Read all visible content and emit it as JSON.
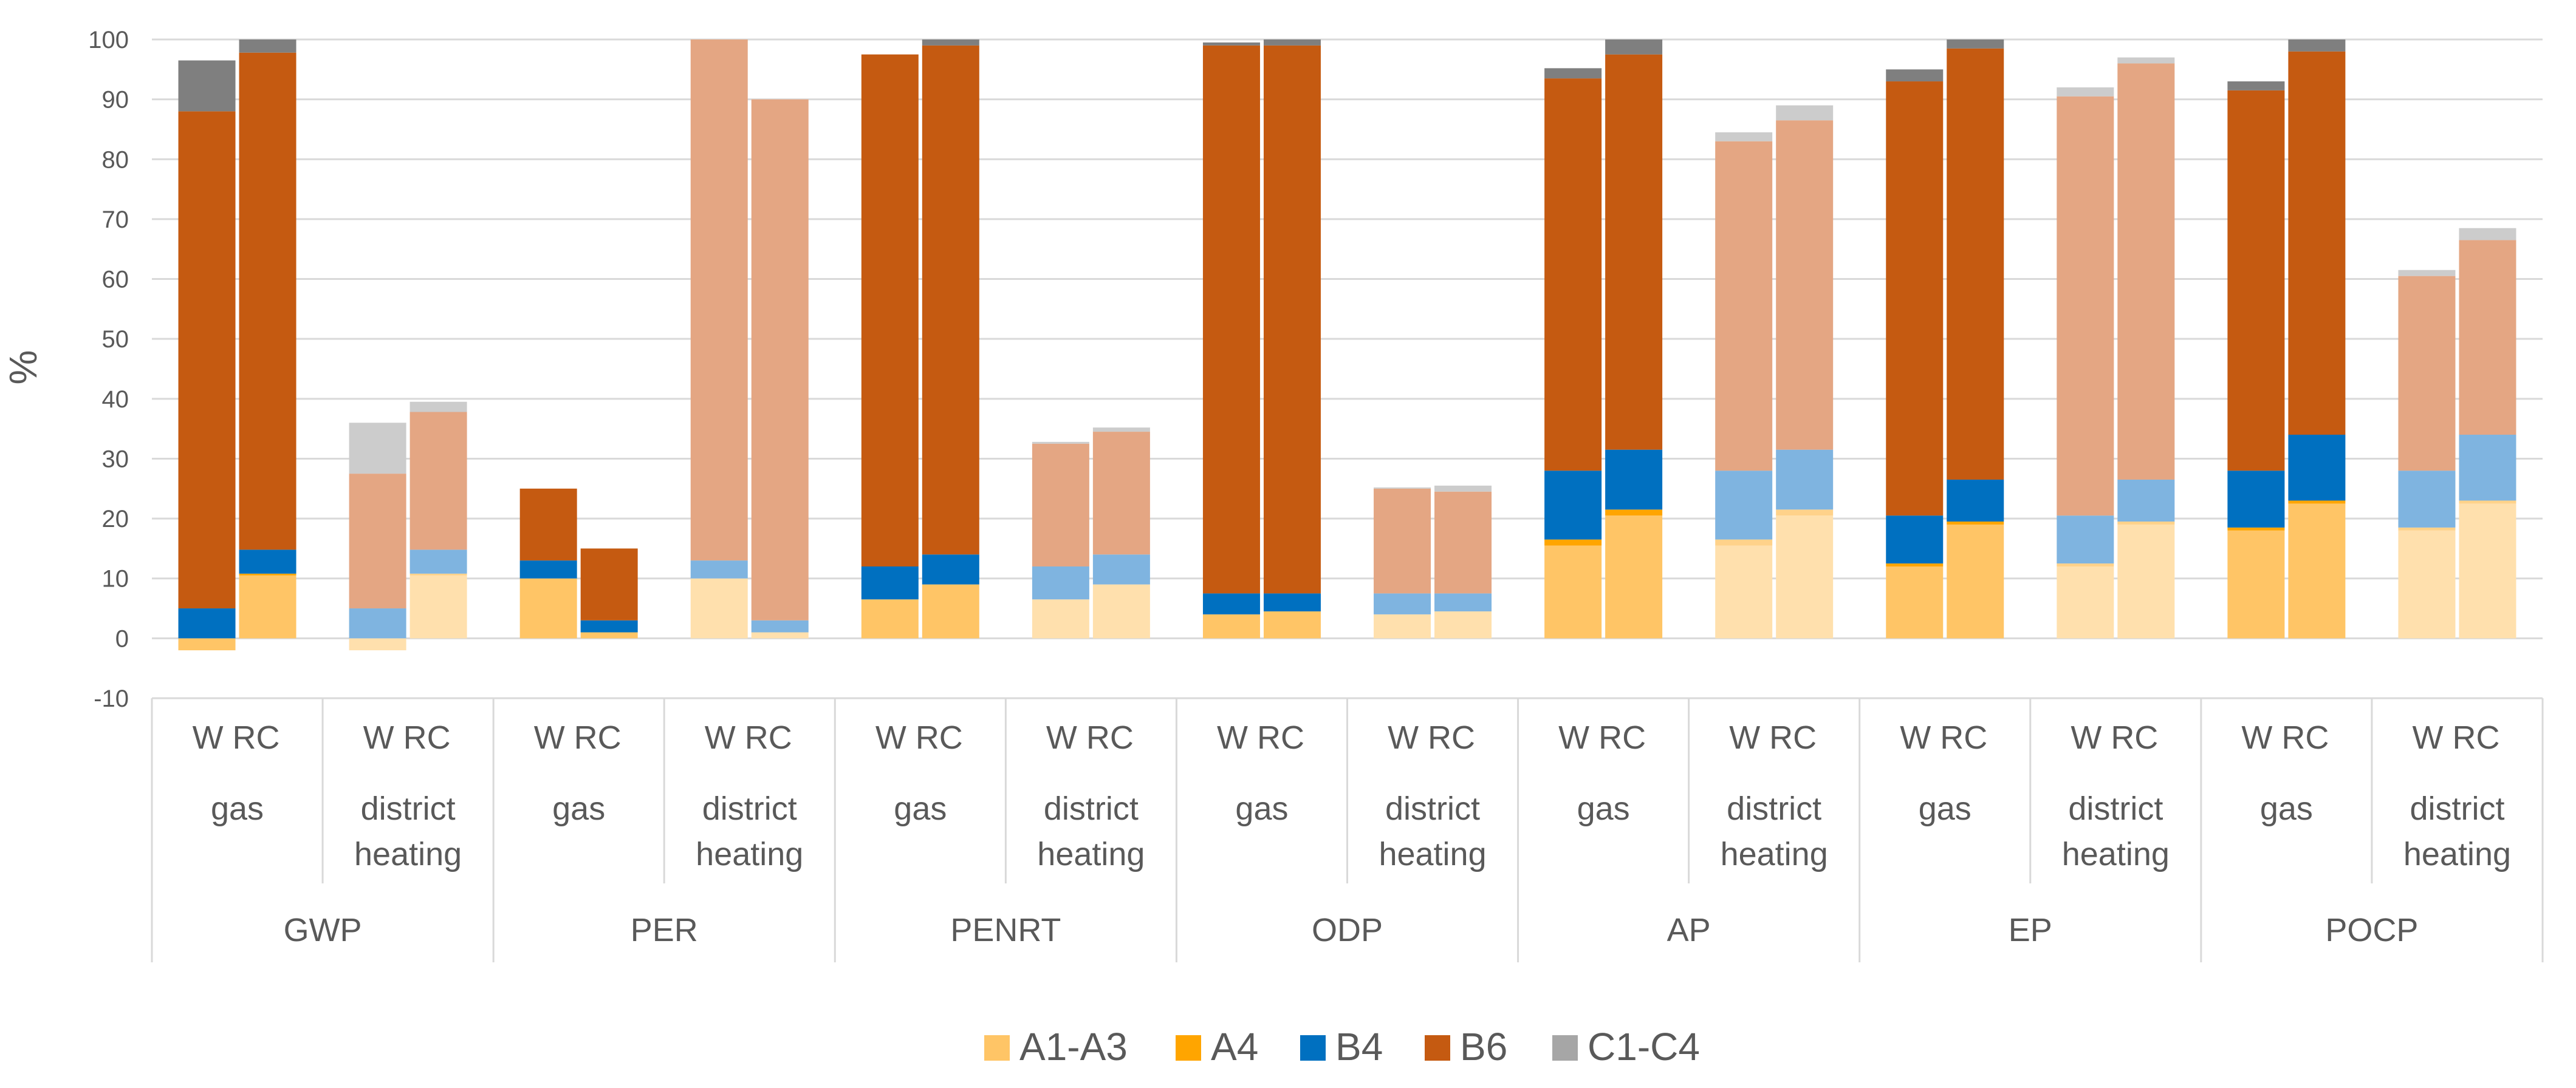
{
  "chart_data": {
    "type": "bar",
    "stacked": true,
    "ylabel": "%",
    "ylim": [
      -10,
      100
    ],
    "yticks": [
      -10,
      0,
      10,
      20,
      30,
      40,
      50,
      60,
      70,
      80,
      90,
      100
    ],
    "grid": true,
    "legend_position": "bottom",
    "legend": [
      {
        "name": "A1-A3",
        "color": "#FFC566"
      },
      {
        "name": "A4",
        "color": "#FFA500"
      },
      {
        "name": "B4",
        "color": "#0070C0"
      },
      {
        "name": "B6",
        "color": "#C55A11"
      },
      {
        "name": "C1-C4",
        "color": "#A6A6A6"
      }
    ],
    "bar_labels": [
      "W",
      "RC"
    ],
    "groups": [
      {
        "indicator": "GWP",
        "cases": [
          {
            "scenario": "gas",
            "bars": [
              {
                "label": "W",
                "A1-A3": -2,
                "A4": 0,
                "B4": 5,
                "B6": 83,
                "C1-C4": 8.5
              },
              {
                "label": "RC",
                "A1-A3": 10.5,
                "A4": 0.3,
                "B4": 4,
                "B6": 83,
                "C1-C4": 2.2
              }
            ]
          },
          {
            "scenario": "district heating",
            "bars": [
              {
                "label": "W",
                "A1-A3": -2,
                "A4": 0,
                "B4": 5,
                "B6": 22.5,
                "C1-C4": 8.5
              },
              {
                "label": "RC",
                "A1-A3": 10.5,
                "A4": 0.3,
                "B4": 4,
                "B6": 23,
                "C1-C4": 1.7
              }
            ]
          }
        ]
      },
      {
        "indicator": "PER",
        "cases": [
          {
            "scenario": "gas",
            "bars": [
              {
                "label": "W",
                "A1-A3": 10,
                "A4": 0,
                "B4": 3,
                "B6": 12,
                "C1-C4": 0
              },
              {
                "label": "RC",
                "A1-A3": 1,
                "A4": 0,
                "B4": 2,
                "B6": 12,
                "C1-C4": 0
              }
            ]
          },
          {
            "scenario": "district heating",
            "bars": [
              {
                "label": "W",
                "A1-A3": 10,
                "A4": 0,
                "B4": 3,
                "B6": 87,
                "C1-C4": 0
              },
              {
                "label": "RC",
                "A1-A3": 1,
                "A4": 0,
                "B4": 2,
                "B6": 87,
                "C1-C4": 0
              }
            ]
          }
        ]
      },
      {
        "indicator": "PENRT",
        "cases": [
          {
            "scenario": "gas",
            "bars": [
              {
                "label": "W",
                "A1-A3": 6.5,
                "A4": 0,
                "B4": 5.5,
                "B6": 85.5,
                "C1-C4": 0
              },
              {
                "label": "RC",
                "A1-A3": 9,
                "A4": 0,
                "B4": 5,
                "B6": 85,
                "C1-C4": 1
              }
            ]
          },
          {
            "scenario": "district heating",
            "bars": [
              {
                "label": "W",
                "A1-A3": 6.5,
                "A4": 0,
                "B4": 5.5,
                "B6": 20.5,
                "C1-C4": 0.3
              },
              {
                "label": "RC",
                "A1-A3": 9,
                "A4": 0,
                "B4": 5,
                "B6": 20.5,
                "C1-C4": 0.7
              }
            ]
          }
        ]
      },
      {
        "indicator": "ODP",
        "cases": [
          {
            "scenario": "gas",
            "bars": [
              {
                "label": "W",
                "A1-A3": 4,
                "A4": 0,
                "B4": 3.5,
                "B6": 91.5,
                "C1-C4": 0.5
              },
              {
                "label": "RC",
                "A1-A3": 4.5,
                "A4": 0,
                "B4": 3,
                "B6": 91.5,
                "C1-C4": 1
              }
            ]
          },
          {
            "scenario": "district heating",
            "bars": [
              {
                "label": "W",
                "A1-A3": 4,
                "A4": 0,
                "B4": 3.5,
                "B6": 17.5,
                "C1-C4": 0.2
              },
              {
                "label": "RC",
                "A1-A3": 4.5,
                "A4": 0,
                "B4": 3,
                "B6": 17,
                "C1-C4": 1
              }
            ]
          }
        ]
      },
      {
        "indicator": "AP",
        "cases": [
          {
            "scenario": "gas",
            "bars": [
              {
                "label": "W",
                "A1-A3": 15.5,
                "A4": 1,
                "B4": 11.5,
                "B6": 65.5,
                "C1-C4": 1.7
              },
              {
                "label": "RC",
                "A1-A3": 20.5,
                "A4": 1,
                "B4": 10,
                "B6": 66,
                "C1-C4": 2.5
              }
            ]
          },
          {
            "scenario": "district heating",
            "bars": [
              {
                "label": "W",
                "A1-A3": 15.5,
                "A4": 1,
                "B4": 11.5,
                "B6": 55,
                "C1-C4": 1.5
              },
              {
                "label": "RC",
                "A1-A3": 20.5,
                "A4": 1,
                "B4": 10,
                "B6": 55,
                "C1-C4": 2.5
              }
            ]
          }
        ]
      },
      {
        "indicator": "EP",
        "cases": [
          {
            "scenario": "gas",
            "bars": [
              {
                "label": "W",
                "A1-A3": 12,
                "A4": 0.5,
                "B4": 8,
                "B6": 72.5,
                "C1-C4": 2
              },
              {
                "label": "RC",
                "A1-A3": 19,
                "A4": 0.5,
                "B4": 7,
                "B6": 72,
                "C1-C4": 1.5
              }
            ]
          },
          {
            "scenario": "district heating",
            "bars": [
              {
                "label": "W",
                "A1-A3": 12,
                "A4": 0.5,
                "B4": 8,
                "B6": 70,
                "C1-C4": 1.5
              },
              {
                "label": "RC",
                "A1-A3": 19,
                "A4": 0.5,
                "B4": 7,
                "B6": 69.5,
                "C1-C4": 1
              }
            ]
          }
        ]
      },
      {
        "indicator": "POCP",
        "cases": [
          {
            "scenario": "gas",
            "bars": [
              {
                "label": "W",
                "A1-A3": 18,
                "A4": 0.5,
                "B4": 9.5,
                "B6": 63.5,
                "C1-C4": 1.5
              },
              {
                "label": "RC",
                "A1-A3": 22.5,
                "A4": 0.5,
                "B4": 11,
                "B6": 64,
                "C1-C4": 2
              }
            ]
          },
          {
            "scenario": "district heating",
            "bars": [
              {
                "label": "W",
                "A1-A3": 18,
                "A4": 0.5,
                "B4": 9.5,
                "B6": 32.5,
                "C1-C4": 1
              },
              {
                "label": "RC",
                "A1-A3": 22.5,
                "A4": 0.5,
                "B4": 11,
                "B6": 32.5,
                "C1-C4": 2
              }
            ]
          }
        ]
      }
    ]
  },
  "colors": {
    "A1-A3": "#FFC566",
    "A4": "#FFA500",
    "B4": "#0070C0",
    "B6": "#C55A11",
    "C1-C4": "#A6A6A6",
    "A1-A3_light": "#FFE0AD",
    "A4_light": "#FFD28A",
    "B4_light": "#7FB4E0",
    "B6_light": "#E4A683",
    "C1-C4_light": "#CCCCCC",
    "C1-C4_dark_gas_W": "#808080"
  }
}
